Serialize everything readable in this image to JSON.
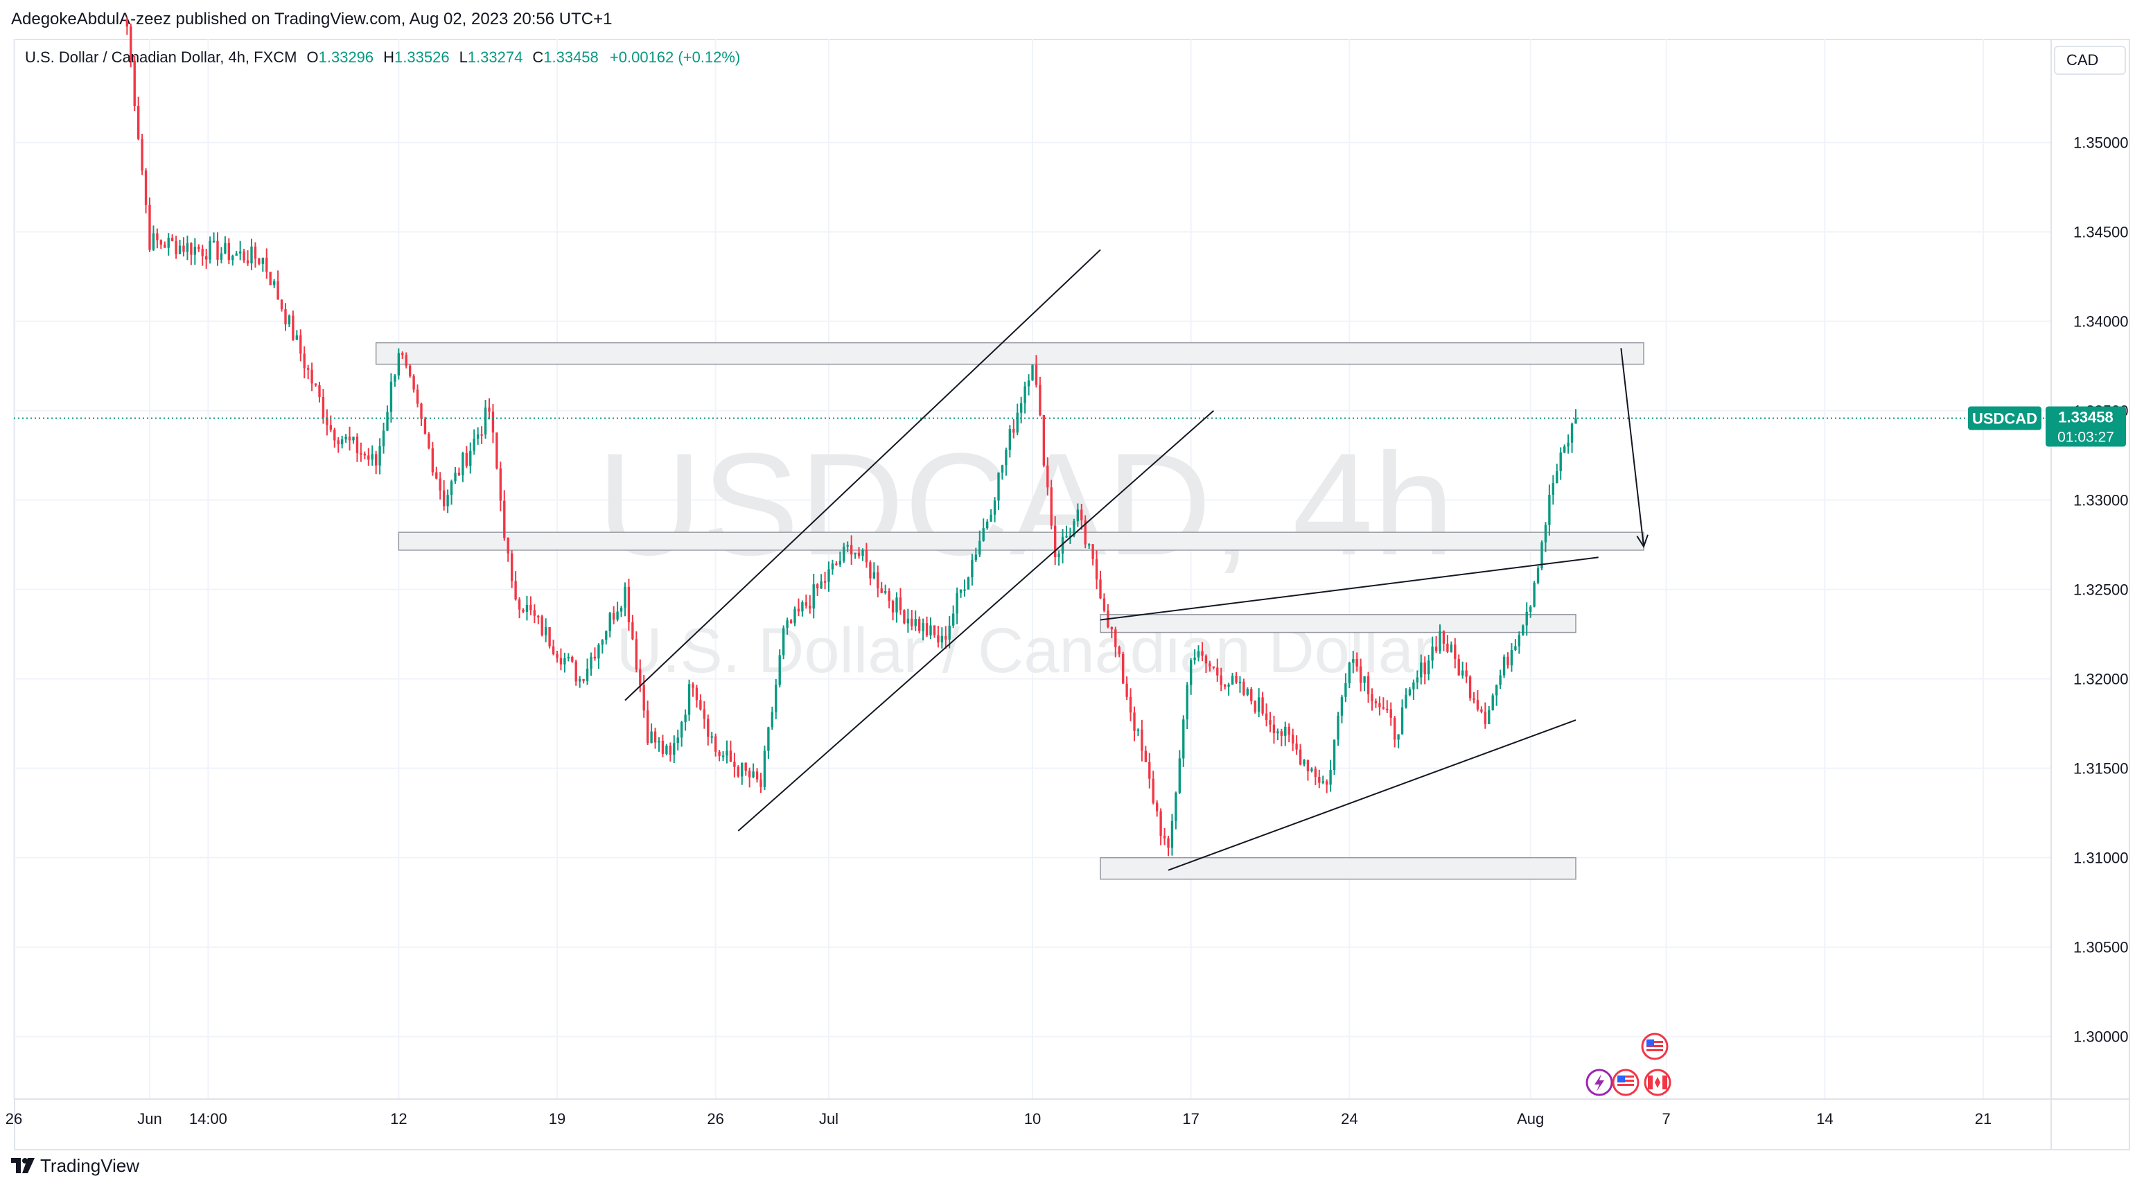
{
  "header": {
    "publisher_line": "AdegokeAbdulA-zeez published on TradingView.com, Aug 02, 2023 20:56 UTC+1"
  },
  "legend": {
    "symbol_desc": "U.S. Dollar / Canadian Dollar, 4h, FXCM",
    "open_label": "O",
    "open": "1.33296",
    "high_label": "H",
    "high": "1.33526",
    "low_label": "L",
    "low": "1.33274",
    "close_label": "C",
    "close": "1.33458",
    "change": "+0.00162 (+0.12%)"
  },
  "currency": "CAD",
  "price_tag": {
    "symbol": "USDCAD",
    "price": "1.33458",
    "countdown": "01:03:27"
  },
  "watermark": {
    "symbol": "USDCAD, 4h",
    "description": "U.S. Dollar / Canadian Dollar"
  },
  "footer": {
    "brand": "TradingView"
  },
  "colors": {
    "up": "#089981",
    "down": "#f23645",
    "grid": "#f0f3fa",
    "drawing": "#131722",
    "zone_fill": "#f0f1f3",
    "zone_border": "#9598a1"
  },
  "icons": [
    "lightning-event-icon",
    "us-flag-icon",
    "canada-flag-icon"
  ],
  "chart_data": {
    "type": "candlestick",
    "symbol": "USDCAD",
    "timeframe": "4h",
    "y_axis": {
      "ticks": [
        "1.35000",
        "1.34500",
        "1.34000",
        "1.33500",
        "1.33000",
        "1.32500",
        "1.32000",
        "1.31500",
        "1.31000",
        "1.30500",
        "1.30000"
      ],
      "ylim": [
        1.2965,
        1.3558
      ]
    },
    "x_axis": {
      "ticks": [
        "26",
        "Jun",
        "14:00",
        "12",
        "19",
        "26",
        "Jul",
        "10",
        "17",
        "24",
        "Aug",
        "7",
        "14",
        "21"
      ],
      "start": "2023-05-26",
      "end": "2023-08-24"
    },
    "last_price": 1.33458,
    "key_points": [
      {
        "date": "2023-05-31",
        "price": 1.3565
      },
      {
        "date": "2023-06-01",
        "price": 1.3445
      },
      {
        "date": "2023-06-06",
        "price": 1.3435
      },
      {
        "date": "2023-06-09",
        "price": 1.334
      },
      {
        "date": "2023-06-11",
        "price": 1.332
      },
      {
        "date": "2023-06-12",
        "price": 1.3385
      },
      {
        "date": "2023-06-14",
        "price": 1.33
      },
      {
        "date": "2023-06-16",
        "price": 1.335
      },
      {
        "date": "2023-06-17",
        "price": 1.325
      },
      {
        "date": "2023-06-20",
        "price": 1.32
      },
      {
        "date": "2023-06-22",
        "price": 1.325
      },
      {
        "date": "2023-06-23",
        "price": 1.317
      },
      {
        "date": "2023-06-24",
        "price": 1.3155
      },
      {
        "date": "2023-06-25",
        "price": 1.32
      },
      {
        "date": "2023-06-26",
        "price": 1.316
      },
      {
        "date": "2023-06-28",
        "price": 1.314
      },
      {
        "date": "2023-06-29",
        "price": 1.3225
      },
      {
        "date": "2023-07-02",
        "price": 1.3275
      },
      {
        "date": "2023-07-04",
        "price": 1.324
      },
      {
        "date": "2023-07-06",
        "price": 1.322
      },
      {
        "date": "2023-07-08",
        "price": 1.329
      },
      {
        "date": "2023-07-10",
        "price": 1.338
      },
      {
        "date": "2023-07-11",
        "price": 1.327
      },
      {
        "date": "2023-07-12",
        "price": 1.329
      },
      {
        "date": "2023-07-13",
        "price": 1.325
      },
      {
        "date": "2023-07-15",
        "price": 1.315
      },
      {
        "date": "2023-07-16",
        "price": 1.31
      },
      {
        "date": "2023-07-17",
        "price": 1.3215
      },
      {
        "date": "2023-07-20",
        "price": 1.3185
      },
      {
        "date": "2023-07-23",
        "price": 1.314
      },
      {
        "date": "2023-07-24",
        "price": 1.3215
      },
      {
        "date": "2023-07-26",
        "price": 1.317
      },
      {
        "date": "2023-07-27",
        "price": 1.32
      },
      {
        "date": "2023-07-28",
        "price": 1.3225
      },
      {
        "date": "2023-07-30",
        "price": 1.318
      },
      {
        "date": "2023-08-01",
        "price": 1.3245
      },
      {
        "date": "2023-08-02",
        "price": 1.331
      },
      {
        "date": "2023-08-03",
        "price": 1.33458
      }
    ],
    "zones": [
      {
        "from": "2023-06-11",
        "to": "2023-08-06",
        "top": 1.3388,
        "bottom": 1.3376
      },
      {
        "from": "2023-06-12",
        "to": "2023-08-06",
        "top": 1.3282,
        "bottom": 1.3272
      },
      {
        "from": "2023-07-13",
        "to": "2023-08-03",
        "top": 1.3236,
        "bottom": 1.3226
      },
      {
        "from": "2023-07-13",
        "to": "2023-08-03",
        "top": 1.31,
        "bottom": 1.3088
      }
    ],
    "trendlines": [
      {
        "from": [
          "2023-06-22",
          1.3188
        ],
        "to": [
          "2023-07-13",
          1.344
        ]
      },
      {
        "from": [
          "2023-06-27",
          1.3115
        ],
        "to": [
          "2023-07-18",
          1.335
        ]
      },
      {
        "from": [
          "2023-07-13",
          1.3233
        ],
        "to": [
          "2023-08-04",
          1.3268
        ]
      },
      {
        "from": [
          "2023-07-16",
          1.3093
        ],
        "to": [
          "2023-08-03",
          1.3177
        ]
      }
    ],
    "arrow": {
      "from": [
        "2023-08-05",
        1.3385
      ],
      "to": [
        "2023-08-06",
        1.3274
      ]
    }
  }
}
